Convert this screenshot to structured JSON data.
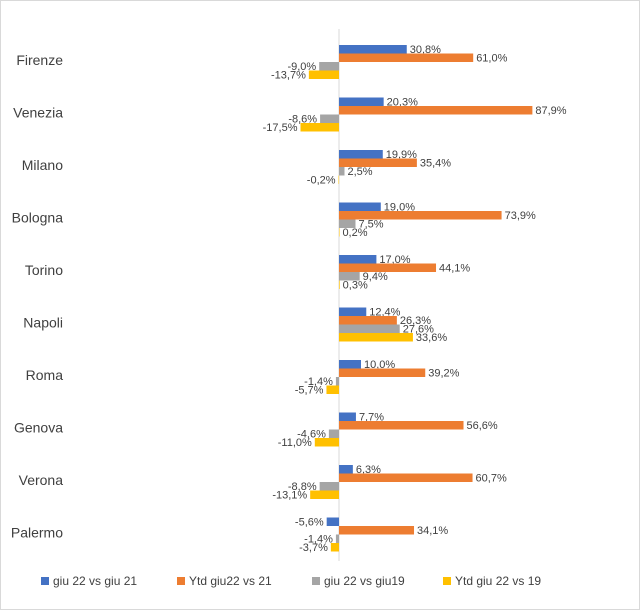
{
  "chart_data": {
    "type": "bar",
    "orientation": "horizontal",
    "categories": [
      "Firenze",
      "Venezia",
      "Milano",
      "Bologna",
      "Torino",
      "Napoli",
      "Roma",
      "Genova",
      "Verona",
      "Palermo"
    ],
    "series": [
      {
        "name": "giu 22 vs giu 21",
        "color": "#4472c4",
        "values": [
          30.8,
          20.3,
          19.9,
          19.0,
          17.0,
          12.4,
          10.0,
          7.7,
          6.3,
          -5.6
        ],
        "labels": [
          "30,8%",
          "20,3%",
          "19,9%",
          "19,0%",
          "17,0%",
          "12,4%",
          "10,0%",
          "7,7%",
          "6,3%",
          "-5,6%"
        ]
      },
      {
        "name": "Ytd giu22 vs 21",
        "color": "#ed7d31",
        "values": [
          61.0,
          87.9,
          35.4,
          73.9,
          44.1,
          26.3,
          39.2,
          56.6,
          60.7,
          34.1
        ],
        "labels": [
          "61,0%",
          "87,9%",
          "35,4%",
          "73,9%",
          "44,1%",
          "26,3%",
          "39,2%",
          "56,6%",
          "60,7%",
          "34,1%"
        ]
      },
      {
        "name": "giu 22 vs giu19",
        "color": "#a5a5a5",
        "values": [
          -9.0,
          -8.6,
          2.5,
          7.5,
          9.4,
          27.6,
          -1.4,
          -4.6,
          -8.8,
          -1.4
        ],
        "labels": [
          "-9,0%",
          "-8,6%",
          "2,5%",
          "7,5%",
          "9,4%",
          "27,6%",
          "-1,4%",
          "-4,6%",
          "-8,8%",
          "-1,4%"
        ]
      },
      {
        "name": "Ytd giu 22 vs 19",
        "color": "#ffc000",
        "values": [
          -13.7,
          -17.5,
          -0.2,
          0.2,
          0.3,
          33.6,
          -5.7,
          -11.0,
          -13.1,
          -3.7
        ],
        "labels": [
          "-13,7%",
          "-17,5%",
          "-0,2%",
          "0,2%",
          "0,3%",
          "33,6%",
          "-5,7%",
          "-11,0%",
          "-13,1%",
          "-3,7%"
        ]
      }
    ],
    "legend_position": "bottom",
    "axis_visible": false,
    "grid": false
  }
}
